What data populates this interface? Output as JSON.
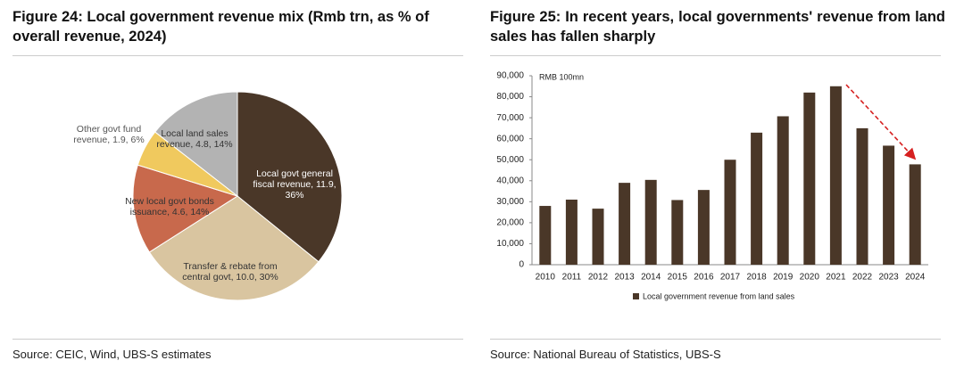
{
  "chart_data": [
    {
      "type": "pie",
      "title": "Figure 24: Local government revenue mix (Rmb trn, as % of overall revenue, 2024)",
      "values": [
        11.9,
        10.0,
        4.6,
        1.9,
        4.8
      ],
      "value_labels": [
        "Local govt general fiscal revenue, 11.9, 36%",
        "Transfer & rebate from central govt, 10.0, 30%",
        "New local govt bonds issuance, 4.6, 14%",
        "Other govt fund revenue, 1.9, 6%",
        "Local land sales revenue, 4.8, 14%"
      ],
      "colors": [
        "#4a3728",
        "#d9c5a0",
        "#c8694c",
        "#f0c95e",
        "#b3b3b3"
      ],
      "source": "Source: CEIC, Wind, UBS-S estimates"
    },
    {
      "type": "bar",
      "title": "Figure 25: In recent years, local governments' revenue from land sales has fallen sharply",
      "annotation": "RMB 100mn",
      "categories": [
        "2010",
        "2011",
        "2012",
        "2013",
        "2014",
        "2015",
        "2016",
        "2017",
        "2018",
        "2019",
        "2020",
        "2021",
        "2022",
        "2023",
        "2024"
      ],
      "series": [
        {
          "name": "Local government revenue from land sales",
          "color": "#4a3728",
          "values": [
            28000,
            31000,
            26700,
            39000,
            40400,
            30800,
            35600,
            50000,
            62900,
            70700,
            82000,
            85000,
            65000,
            56700,
            47800
          ]
        }
      ],
      "ylim": [
        0,
        90000
      ],
      "yticks": [
        0,
        {
          "value": 10000,
          "label": "10,000"
        },
        {
          "value": 20000,
          "label": "20,000"
        },
        {
          "value": 30000,
          "label": "30,000"
        },
        {
          "value": 40000,
          "label": "40,000"
        },
        {
          "value": 50000,
          "label": "50,000"
        },
        {
          "value": 60000,
          "label": "60,000"
        },
        {
          "value": 70000,
          "label": "70,000"
        },
        {
          "value": 80000,
          "label": "80,000"
        },
        {
          "value": 90000,
          "label": "90,000"
        }
      ],
      "grid": false,
      "source": "Source: National Bureau of Statistics, UBS-S"
    }
  ]
}
